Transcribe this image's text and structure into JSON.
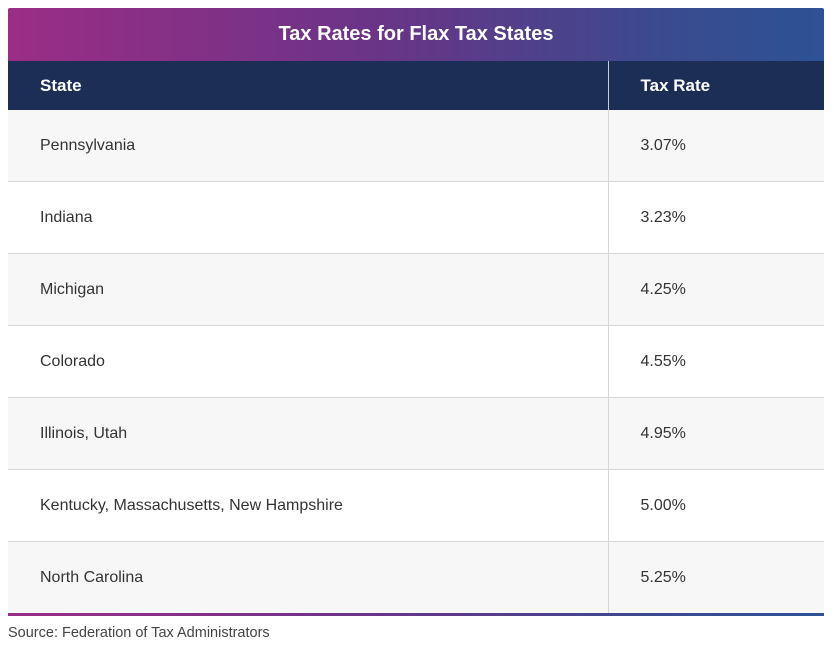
{
  "table": {
    "title": "Tax Rates for Flax Tax States",
    "headers": {
      "state": "State",
      "rate": "Tax Rate"
    },
    "rows": [
      {
        "state": "Pennsylvania",
        "rate": "3.07%"
      },
      {
        "state": "Indiana",
        "rate": "3.23%"
      },
      {
        "state": "Michigan",
        "rate": "4.25%"
      },
      {
        "state": "Colorado",
        "rate": "4.55%"
      },
      {
        "state": "Illinois, Utah",
        "rate": "4.95%"
      },
      {
        "state": "Kentucky, Massachusetts, New Hampshire",
        "rate": "5.00%"
      },
      {
        "state": "North Carolina",
        "rate": "5.25%"
      }
    ]
  },
  "source": "Source: Federation of Tax Administrators",
  "colors": {
    "header_bg": "#1c2e55",
    "gradient_start": "#9b2d86",
    "gradient_end": "#2d5295",
    "row_alt": "#f7f7f7"
  }
}
